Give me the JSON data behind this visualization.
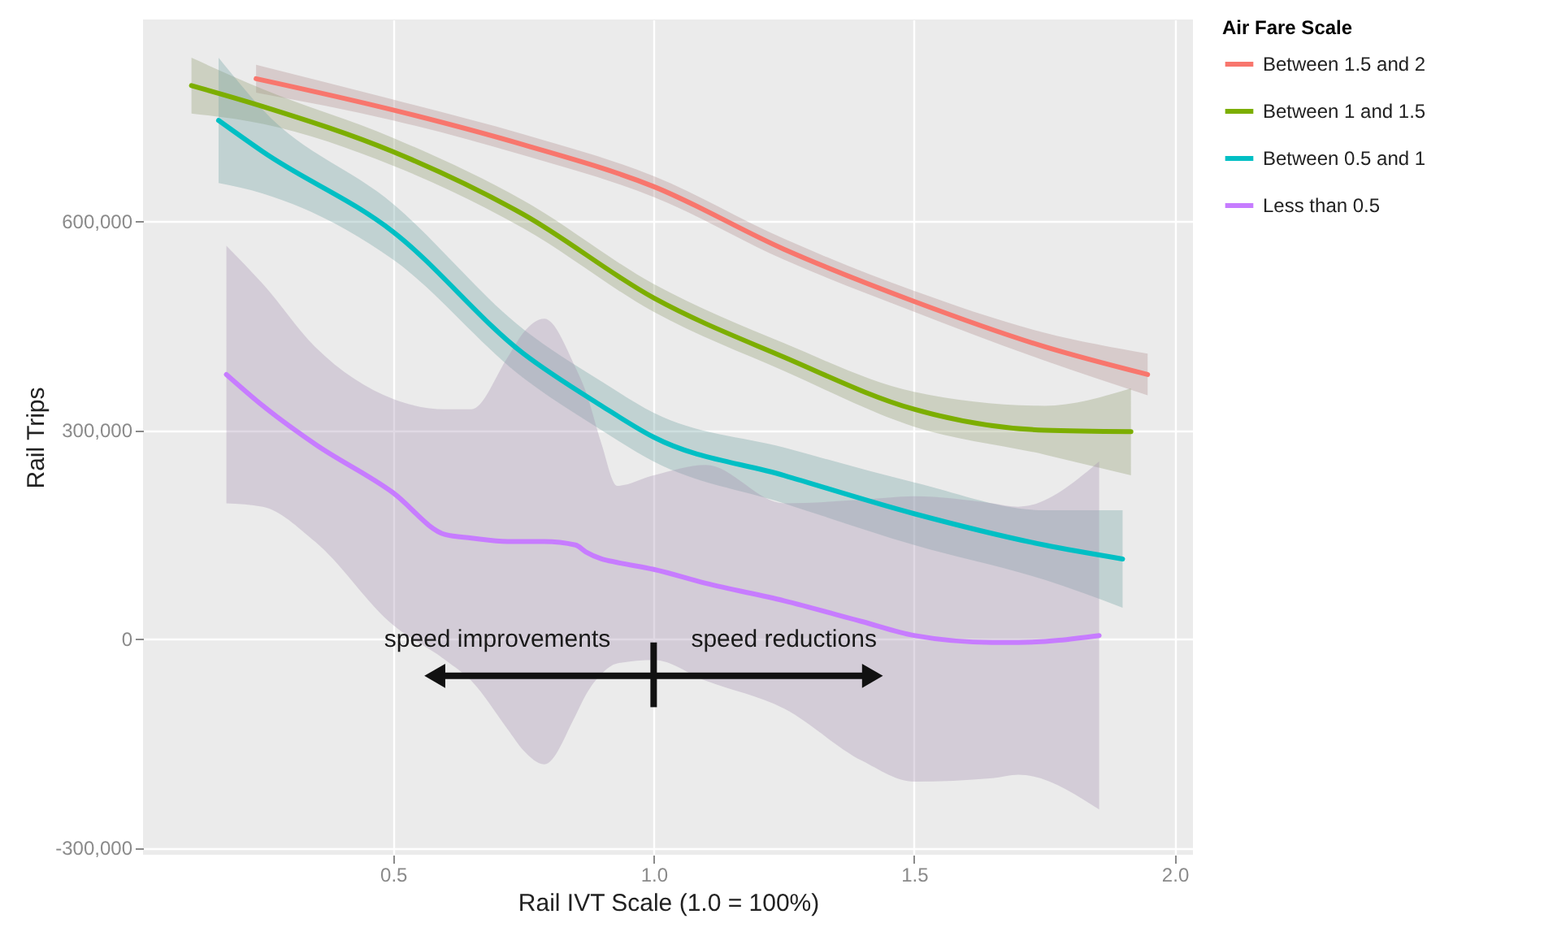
{
  "chart_data": {
    "type": "line",
    "xlabel": "Rail IVT Scale (1.0 = 100%)",
    "ylabel": "Rail Trips",
    "legend_title": "Air Fare Scale",
    "legend": "right",
    "grid": true,
    "xlim": [
      0.02,
      2.035
    ],
    "ylim": [
      -310000,
      890000
    ],
    "xticks": [
      0.5,
      {
        "value": 1,
        "label": "1.0"
      },
      1.5,
      {
        "value": 2,
        "label": "2.0"
      }
    ],
    "yticks": [
      {
        "value": -300000,
        "label": "-300,000"
      },
      0,
      {
        "value": 300000,
        "label": "300,000"
      },
      {
        "value": 600000,
        "label": "600,000"
      }
    ],
    "annotations": [
      "speed improvements",
      "speed reductions"
    ],
    "series": [
      {
        "name": "Between 1.5 and 2",
        "color": "#f8766d",
        "x": [
          0.237,
          0.5,
          0.75,
          1.0,
          1.25,
          1.5,
          1.75,
          1.948
        ],
        "values": [
          805000,
          760000,
          710000,
          650000,
          560000,
          485000,
          420000,
          380000
        ],
        "lower": [
          785000,
          745000,
          695000,
          635000,
          545000,
          470000,
          400000,
          350000
        ],
        "upper": [
          825000,
          775000,
          725000,
          665000,
          575000,
          500000,
          440000,
          410000
        ]
      },
      {
        "name": "Between 1 and 1.5",
        "color": "#7cae00",
        "x": [
          0.113,
          0.25,
          0.5,
          0.75,
          1.0,
          1.25,
          1.5,
          1.75,
          1.916
        ],
        "values": [
          795000,
          765000,
          700000,
          610000,
          490000,
          405000,
          330000,
          300000,
          298000
        ],
        "lower": [
          755000,
          740000,
          680000,
          590000,
          470000,
          385000,
          305000,
          265000,
          235000
        ],
        "upper": [
          835000,
          790000,
          720000,
          630000,
          510000,
          425000,
          355000,
          335000,
          360000
        ]
      },
      {
        "name": "Between 0.5 and 1",
        "color": "#00bfc4",
        "x": [
          0.165,
          0.25,
          0.5,
          0.75,
          0.9,
          1.0,
          1.25,
          1.5,
          1.75,
          1.9
        ],
        "values": [
          745000,
          700000,
          585000,
          410000,
          335000,
          290000,
          235000,
          180000,
          135000,
          115000
        ],
        "lower": [
          655000,
          640000,
          545000,
          375000,
          300000,
          255000,
          195000,
          135000,
          85000,
          45000
        ],
        "upper": [
          835000,
          760000,
          625000,
          445000,
          370000,
          325000,
          275000,
          225000,
          185000,
          185000
        ]
      },
      {
        "name": "Less than 0.5",
        "color": "#c77cff",
        "x": [
          0.18,
          0.25,
          0.35,
          0.5,
          0.6,
          0.65,
          0.72,
          0.75,
          0.79,
          0.85,
          0.87,
          0.9,
          0.93,
          1.0,
          1.1,
          1.25,
          1.4,
          1.5,
          1.65,
          1.7,
          1.855
        ],
        "values": [
          380000,
          335000,
          280000,
          210000,
          150000,
          145000,
          140000,
          140000,
          140000,
          135000,
          125000,
          115000,
          110000,
          100000,
          80000,
          55000,
          25000,
          5000,
          -5000,
          -5000,
          5000
        ],
        "lower": [
          195000,
          190000,
          140000,
          20000,
          -30000,
          -60000,
          -130000,
          -160000,
          -180000,
          -110000,
          -80000,
          -50000,
          -35000,
          -30000,
          -60000,
          -100000,
          -175000,
          -205000,
          -200000,
          -195000,
          -245000
        ],
        "upper": [
          565000,
          510000,
          420000,
          345000,
          330000,
          330000,
          405000,
          440000,
          460000,
          390000,
          355000,
          280000,
          220000,
          235000,
          250000,
          195000,
          200000,
          205000,
          195000,
          190000,
          255000
        ]
      }
    ]
  }
}
